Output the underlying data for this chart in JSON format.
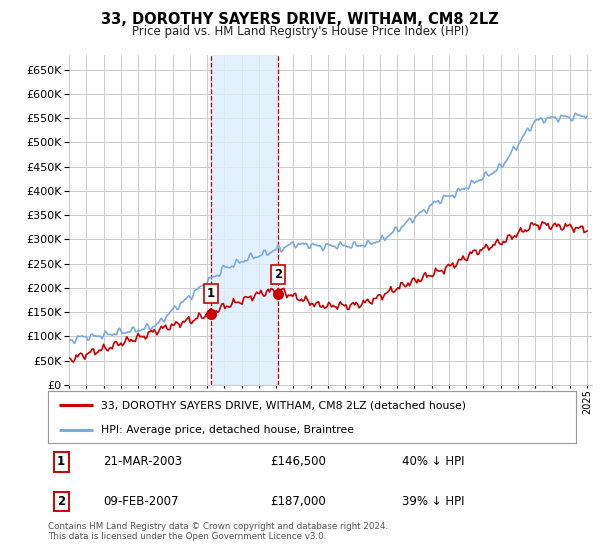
{
  "title": "33, DOROTHY SAYERS DRIVE, WITHAM, CM8 2LZ",
  "subtitle": "Price paid vs. HM Land Registry's House Price Index (HPI)",
  "legend_label_red": "33, DOROTHY SAYERS DRIVE, WITHAM, CM8 2LZ (detached house)",
  "legend_label_blue": "HPI: Average price, detached house, Braintree",
  "annotation1_date": "21-MAR-2003",
  "annotation1_price": "£146,500",
  "annotation1_hpi": "40% ↓ HPI",
  "annotation2_date": "09-FEB-2007",
  "annotation2_price": "£187,000",
  "annotation2_hpi": "39% ↓ HPI",
  "footer": "Contains HM Land Registry data © Crown copyright and database right 2024.\nThis data is licensed under the Open Government Licence v3.0.",
  "ylim": [
    0,
    680000
  ],
  "yticks": [
    0,
    50000,
    100000,
    150000,
    200000,
    250000,
    300000,
    350000,
    400000,
    450000,
    500000,
    550000,
    600000,
    650000
  ],
  "sale1_year": 2003.22,
  "sale1_value": 146500,
  "sale2_year": 2007.11,
  "sale2_value": 187000,
  "color_red": "#cc0000",
  "color_blue": "#7aaadd",
  "color_shade": "#ddeeff",
  "color_vline": "#cc0000",
  "background_color": "#ffffff",
  "grid_color": "#cccccc"
}
